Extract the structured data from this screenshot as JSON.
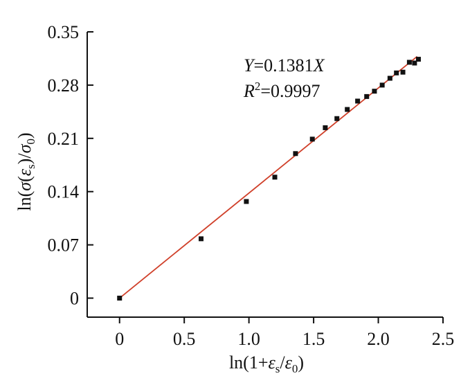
{
  "chart_data": {
    "type": "scatter",
    "x_label": "ln(1+εs/ε0)",
    "y_label": "ln(σ(εs)/σ0)",
    "xlim": [
      -0.25,
      2.5
    ],
    "ylim": [
      -0.025,
      0.35
    ],
    "x_ticks": [
      {
        "value": 0,
        "label": "0"
      },
      {
        "value": 0.5,
        "label": "0.5"
      },
      {
        "value": 1.0,
        "label": "1.0"
      },
      {
        "value": 1.5,
        "label": "1.5"
      },
      {
        "value": 2.0,
        "label": "2.0"
      },
      {
        "value": 2.5,
        "label": "2.5"
      }
    ],
    "y_ticks": [
      {
        "value": 0,
        "label": "0"
      },
      {
        "value": 0.07,
        "label": "0.07"
      },
      {
        "value": 0.14,
        "label": "0.14"
      },
      {
        "value": 0.21,
        "label": "0.21"
      },
      {
        "value": 0.28,
        "label": "0.28"
      },
      {
        "value": 0.35,
        "label": "0.35"
      }
    ],
    "points": [
      {
        "x": 0.0,
        "y": 0.0
      },
      {
        "x": 0.63,
        "y": 0.078
      },
      {
        "x": 0.98,
        "y": 0.127
      },
      {
        "x": 1.2,
        "y": 0.159
      },
      {
        "x": 1.36,
        "y": 0.19
      },
      {
        "x": 1.49,
        "y": 0.209
      },
      {
        "x": 1.59,
        "y": 0.224
      },
      {
        "x": 1.68,
        "y": 0.236
      },
      {
        "x": 1.76,
        "y": 0.248
      },
      {
        "x": 1.84,
        "y": 0.259
      },
      {
        "x": 1.91,
        "y": 0.265
      },
      {
        "x": 1.97,
        "y": 0.272
      },
      {
        "x": 2.03,
        "y": 0.28
      },
      {
        "x": 2.09,
        "y": 0.289
      },
      {
        "x": 2.14,
        "y": 0.296
      },
      {
        "x": 2.19,
        "y": 0.297
      },
      {
        "x": 2.24,
        "y": 0.31
      },
      {
        "x": 2.28,
        "y": 0.309
      },
      {
        "x": 2.31,
        "y": 0.314
      }
    ],
    "fit_line": {
      "slope": 0.1381,
      "x_range": [
        0,
        2.3
      ],
      "color": "#d0402a"
    },
    "marker_color": "#111111",
    "equation": {
      "y_var": "Y",
      "equals_coef": "=0.1381",
      "x_var": "X"
    },
    "r_squared": {
      "r": "R",
      "sup": "2",
      "value": "=0.9997"
    }
  }
}
